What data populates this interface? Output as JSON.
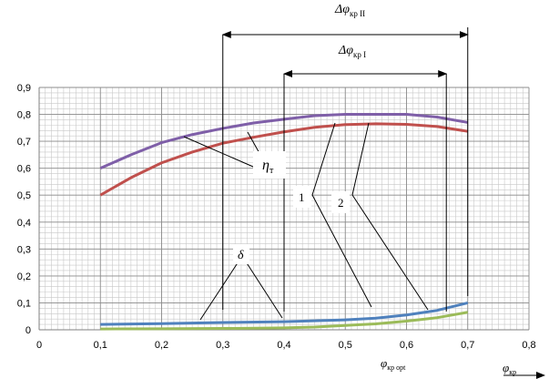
{
  "chart_data": {
    "type": "line",
    "title": "",
    "xlabel": "",
    "ylabel": "",
    "xlim": [
      0,
      0.8
    ],
    "ylim": [
      0,
      0.9
    ],
    "grid": true,
    "x_ticks": [
      "0",
      "0,1",
      "0,2",
      "0,3",
      "0,4",
      "0,5",
      "0,6",
      "0,7",
      "0,8"
    ],
    "y_ticks": [
      "0",
      "0,1",
      "0,2",
      "0,3",
      "0,4",
      "0,5",
      "0,6",
      "0,7",
      "0,8",
      "0,9"
    ],
    "series": [
      {
        "color": "#7f5fa8",
        "x": [
          0.1,
          0.15,
          0.2,
          0.25,
          0.3,
          0.35,
          0.4,
          0.45,
          0.5,
          0.55,
          0.6,
          0.65,
          0.7
        ],
        "y": [
          0.6,
          0.65,
          0.695,
          0.725,
          0.748,
          0.768,
          0.782,
          0.795,
          0.8,
          0.8,
          0.8,
          0.79,
          0.77
        ]
      },
      {
        "color": "#c0504d",
        "x": [
          0.1,
          0.15,
          0.2,
          0.25,
          0.3,
          0.35,
          0.4,
          0.45,
          0.5,
          0.55,
          0.6,
          0.65,
          0.7
        ],
        "y": [
          0.5,
          0.565,
          0.62,
          0.66,
          0.693,
          0.715,
          0.735,
          0.752,
          0.762,
          0.765,
          0.763,
          0.755,
          0.737
        ]
      },
      {
        "color": "#4f81bd",
        "x": [
          0.1,
          0.2,
          0.3,
          0.4,
          0.5,
          0.55,
          0.6,
          0.65,
          0.7
        ],
        "y": [
          0.02,
          0.023,
          0.027,
          0.03,
          0.037,
          0.043,
          0.055,
          0.072,
          0.1
        ]
      },
      {
        "color": "#9bbb59",
        "x": [
          0.1,
          0.2,
          0.3,
          0.4,
          0.45,
          0.5,
          0.55,
          0.6,
          0.65,
          0.7
        ],
        "y": [
          0.003,
          0.004,
          0.005,
          0.007,
          0.01,
          0.016,
          0.022,
          0.032,
          0.045,
          0.065
        ]
      }
    ],
    "annotations": {
      "delta_phi_II": {
        "text": "Δφ",
        "sub": "кр II",
        "x_from": 0.3,
        "x_to": 0.7
      },
      "delta_phi_I": {
        "text": "Δφ",
        "sub": "кр I",
        "x_from": 0.4,
        "x_to": 0.665
      },
      "eta": {
        "text": "η",
        "sub": "т"
      },
      "delta": {
        "text": "δ"
      },
      "label_1": {
        "text": "1"
      },
      "label_2": {
        "text": "2"
      },
      "phi_kr_opt": {
        "text": "φ",
        "sub": "кр opt"
      },
      "phi_kr": {
        "text": "φ",
        "sub": "кр"
      }
    }
  }
}
